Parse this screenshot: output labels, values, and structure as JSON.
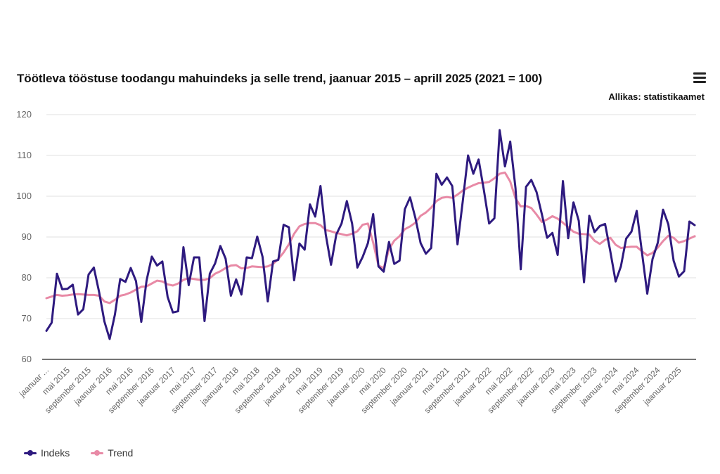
{
  "header": {
    "title": "Töötleva tööstuse toodangu mahuindeks ja selle trend, jaanuar 2015 – aprill 2025 (2021 = 100)",
    "source": "Allikas: statistikaamet",
    "menu_icon": "hamburger-menu-icon"
  },
  "legend": [
    {
      "name": "Indeks",
      "color": "#2e1a7f"
    },
    {
      "name": "Trend",
      "color": "#e88aa6"
    }
  ],
  "chart_data": {
    "type": "line",
    "title": "Töötleva tööstuse toodangu mahuindeks ja selle trend, jaanuar 2015 – aprill 2025 (2021 = 100)",
    "xlabel": "",
    "ylabel": "",
    "ylim": [
      60,
      120
    ],
    "yticks": [
      60,
      70,
      80,
      90,
      100,
      110,
      120
    ],
    "grid": "horizontal",
    "legend_position": "bottom-left",
    "x_start": "jaanuar 2015",
    "x_end": "aprill 2025",
    "x_tick_labels": [
      "jaanuar ...",
      "mai 2015",
      "september 2015",
      "jaanuar 2016",
      "mai 2016",
      "september 2016",
      "jaanuar 2017",
      "mai 2017",
      "september 2017",
      "jaanuar 2018",
      "mai 2018",
      "september 2018",
      "jaanuar 2019",
      "mai 2019",
      "september 2019",
      "jaanuar 2020",
      "mai 2020",
      "september 2020",
      "jaanuar 2021",
      "mai 2021",
      "september 2021",
      "jaanuar 2022",
      "mai 2022",
      "september 2022",
      "jaanuar 2023",
      "mai 2023",
      "september 2023",
      "jaanuar 2024",
      "mai 2024",
      "september 2024",
      "jaanuar 2025"
    ],
    "series": [
      {
        "name": "Indeks",
        "color": "#2e1a7f",
        "values": [
          67,
          69,
          81,
          77.2,
          77.3,
          78.3,
          71,
          72.3,
          80.8,
          82.5,
          76.5,
          69.3,
          65,
          71,
          79.7,
          79,
          82.4,
          79.2,
          69.2,
          79.3,
          85.2,
          83,
          84,
          75.3,
          71.5,
          71.8,
          87.5,
          78.2,
          85,
          85,
          69.4,
          81,
          83.5,
          87.8,
          84.7,
          75.6,
          79.6,
          75.9,
          85,
          84.8,
          90.1,
          85.2,
          74.2,
          84,
          84.4,
          93,
          92.4,
          79.4,
          88.4,
          86.9,
          98,
          95,
          102.5,
          90.6,
          83.2,
          90.6,
          93.3,
          98.8,
          93.3,
          82.5,
          85.1,
          88.5,
          95.6,
          82.8,
          81.5,
          88.8,
          83.4,
          84.2,
          96.8,
          99.7,
          94.7,
          88.5,
          85.9,
          87.3,
          105.5,
          102.8,
          104.6,
          102.5,
          88.2,
          98.8,
          110,
          105.5,
          109,
          101.5,
          93.3,
          94.6,
          116.2,
          107.3,
          113.4,
          102,
          82.1,
          102.3,
          104,
          101,
          95.6,
          89.8,
          91,
          85.6,
          103.7,
          89.7,
          98.5,
          94,
          78.9,
          95.2,
          91.2,
          92.7,
          93.2,
          86.4,
          79.1,
          82.8,
          89.6,
          91.3,
          96.4,
          86.2,
          76.1,
          84.6,
          88.6,
          96.7,
          93.1,
          84.2,
          80.3,
          81.6,
          93.8,
          92.9
        ]
      },
      {
        "name": "Trend",
        "color": "#e88aa6",
        "values": [
          75,
          75.4,
          75.8,
          75.6,
          75.7,
          75.9,
          76,
          75.9,
          75.8,
          75.8,
          75.6,
          74.2,
          73.8,
          74.6,
          75.6,
          75.9,
          76.4,
          77.1,
          77.8,
          77.9,
          78.6,
          79.3,
          79.1,
          78.4,
          78.1,
          78.6,
          79.5,
          79.9,
          79.7,
          79.5,
          79.5,
          79.9,
          81,
          81.6,
          82.4,
          83,
          83.1,
          82.3,
          82.4,
          82.8,
          82.7,
          82.6,
          82.8,
          83.4,
          84.6,
          86.2,
          88.2,
          90.8,
          92.6,
          93.2,
          93.4,
          93.4,
          92.9,
          91.7,
          91.4,
          91,
          90.7,
          90.4,
          90.8,
          91.4,
          93,
          93.3,
          88.6,
          83,
          82.4,
          87,
          89.1,
          90.2,
          91.9,
          92.6,
          93.5,
          95.2,
          96,
          97.2,
          98.8,
          99.6,
          99.8,
          99.6,
          100.4,
          101.4,
          102.1,
          102.7,
          103.2,
          103.3,
          103.5,
          104.4,
          105.5,
          105.8,
          103.6,
          99.5,
          97.5,
          97.6,
          97.1,
          95.5,
          93.7,
          94.3,
          95.1,
          94.5,
          93.5,
          92.4,
          91.3,
          90.8,
          90.7,
          90.6,
          89.1,
          88.3,
          89.3,
          89.8,
          88.1,
          87.3,
          87.5,
          87.6,
          87.6,
          86.5,
          85.5,
          86.1,
          87.4,
          89,
          90.3,
          89.8,
          88.6,
          89,
          89.6,
          90.2
        ]
      }
    ]
  }
}
